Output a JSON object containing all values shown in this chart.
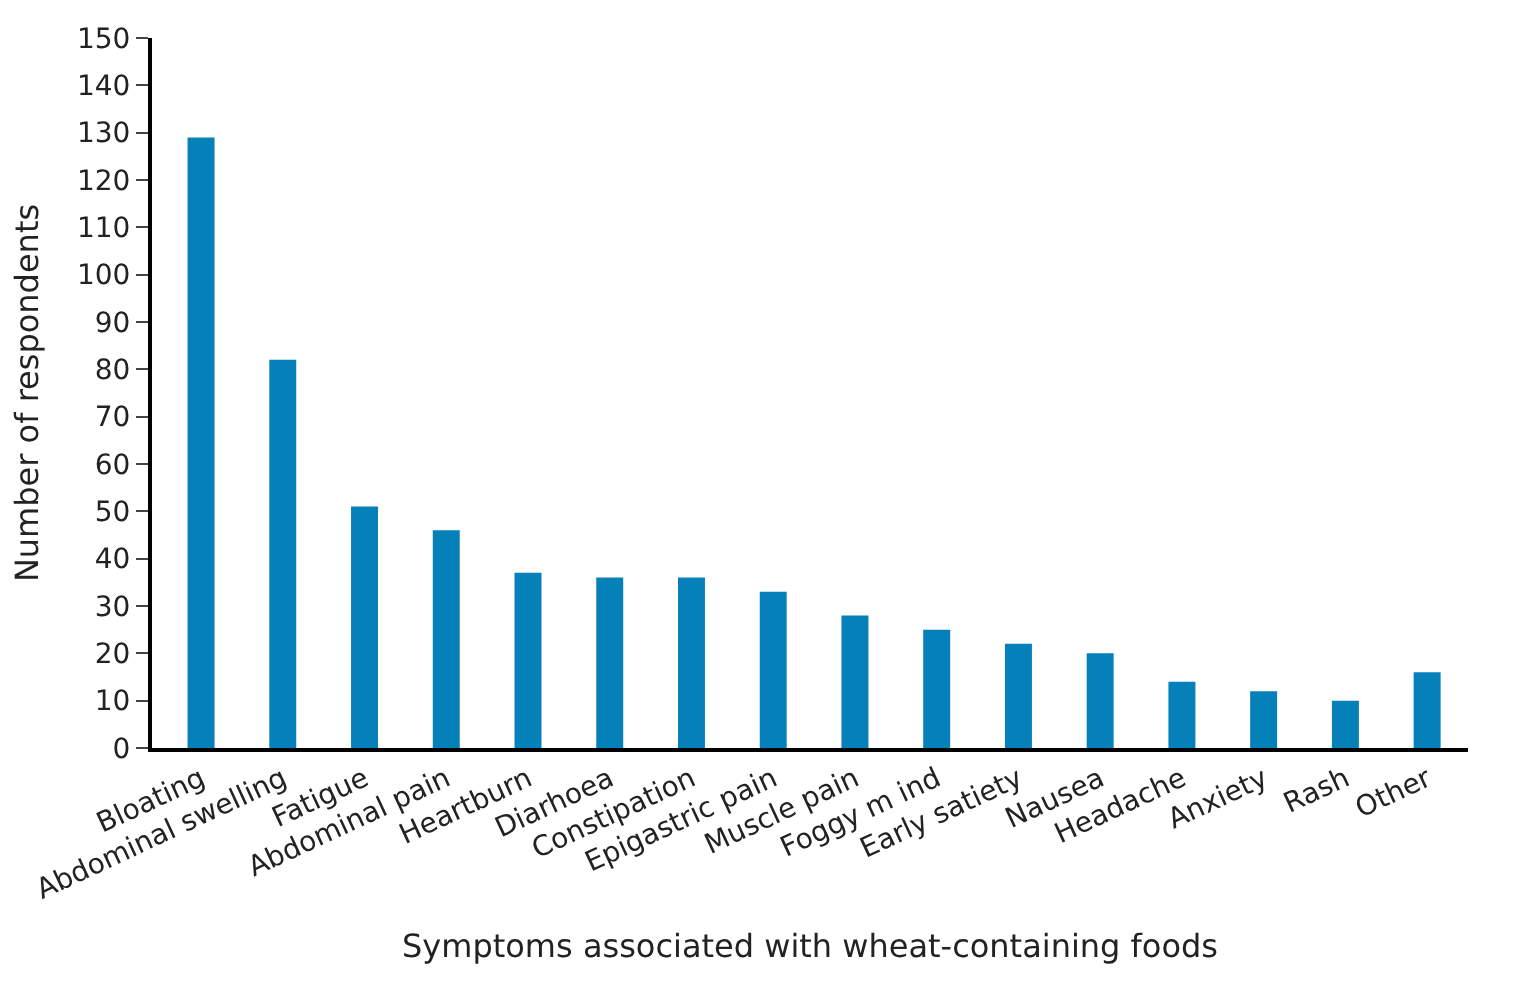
{
  "chart_data": {
    "type": "bar",
    "xlabel": "Symptoms associated with wheat-containing foods",
    "ylabel": "Number of respondents",
    "categories": [
      "Bloating",
      "Abdominal swelling",
      "Fatigue",
      "Abdominal pain",
      "Heartburn",
      "Diarhoea",
      "Constipation",
      "Epigastric pain",
      "Muscle pain",
      "Foggy m ind",
      "Early satiety",
      "Nausea",
      "Headache",
      "Anxiety",
      "Rash",
      "Other"
    ],
    "values": [
      129,
      82,
      51,
      46,
      37,
      36,
      36,
      33,
      28,
      25,
      22,
      20,
      14,
      12,
      10,
      16
    ],
    "color": "#0580b8",
    "ylim": [
      0,
      150
    ],
    "yticks": [
      0,
      10,
      20,
      30,
      40,
      50,
      60,
      70,
      80,
      90,
      100,
      110,
      120,
      130,
      140,
      150
    ]
  }
}
